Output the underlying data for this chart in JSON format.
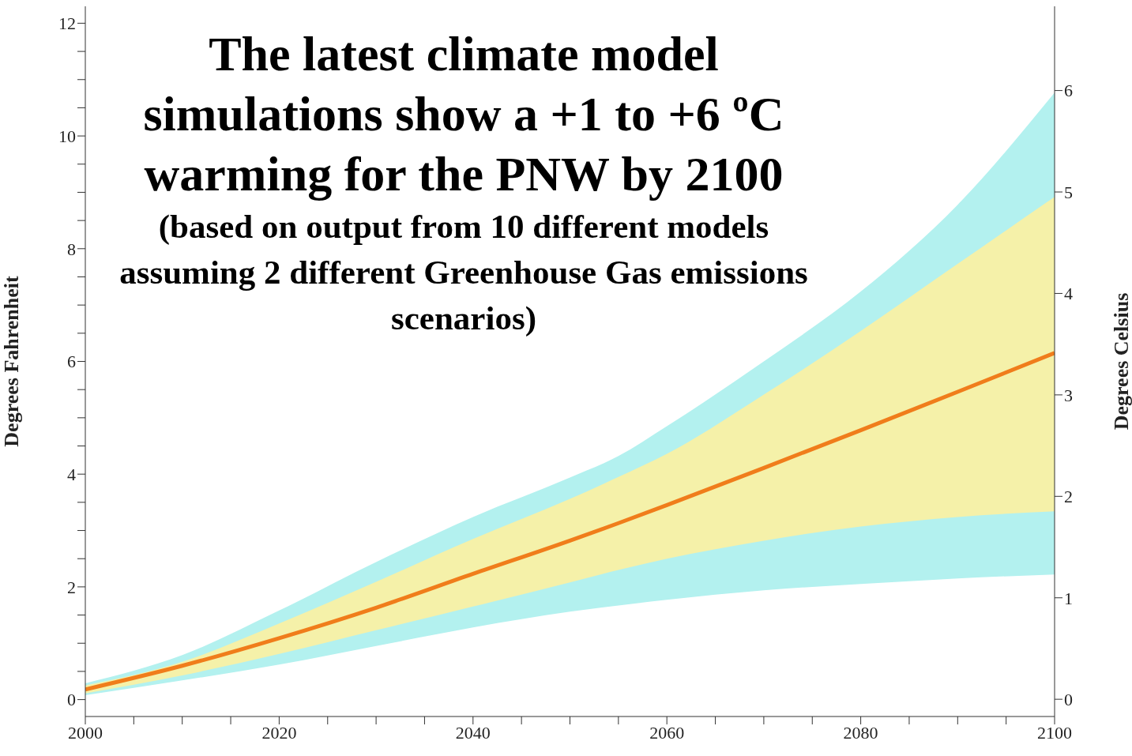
{
  "chart_data": {
    "type": "area",
    "title": "The latest climate model simulations show a +1 to +6 ºC warming for the PNW by 2100",
    "subtitle": "(based on output from 10 different models assuming 2 different Greenhouse Gas emissions scenarios)",
    "ylabel": "Degrees Fahrenheit",
    "y2label": "Degrees  Celsius",
    "x": [
      2000,
      2010,
      2020,
      2030,
      2040,
      2050,
      2055,
      2060,
      2070,
      2080,
      2090,
      2100
    ],
    "series": [
      {
        "color": "#b3f1ef",
        "values": [
          null,
          null,
          null,
          null,
          null,
          null,
          null,
          null,
          null,
          null,
          null,
          null
        ],
        "lower": [
          0.08,
          0.34,
          0.62,
          0.95,
          1.28,
          1.56,
          1.67,
          1.77,
          1.94,
          2.05,
          2.15,
          2.22
        ],
        "upper": [
          0.29,
          0.79,
          1.58,
          2.44,
          3.24,
          3.94,
          4.32,
          4.85,
          6.0,
          7.24,
          8.78,
          10.77
        ]
      },
      {
        "color": "#f5f1a9",
        "values": [
          null,
          null,
          null,
          null,
          null,
          null,
          null,
          null,
          null,
          null,
          null,
          null
        ],
        "lower": [
          0.11,
          0.43,
          0.81,
          1.23,
          1.65,
          2.08,
          2.3,
          2.5,
          2.82,
          3.07,
          3.24,
          3.34
        ],
        "upper": [
          0.25,
          0.67,
          1.35,
          2.09,
          2.85,
          3.56,
          3.95,
          4.36,
          5.41,
          6.54,
          7.73,
          8.92
        ]
      },
      {
        "type": "line",
        "color": "#f07d1b",
        "values": [
          0.18,
          0.6,
          1.09,
          1.63,
          2.23,
          2.82,
          3.13,
          3.45,
          4.11,
          4.78,
          5.46,
          6.15
        ]
      }
    ],
    "xlim": [
      2000,
      2100
    ],
    "xticks": [
      2000,
      {
        "value": 2005,
        "label": null
      },
      {
        "value": 2010,
        "label": null
      },
      {
        "value": 2015,
        "label": null
      },
      2020,
      {
        "value": 2025,
        "label": null
      },
      {
        "value": 2030,
        "label": null
      },
      {
        "value": 2035,
        "label": null
      },
      2040,
      {
        "value": 2045,
        "label": null
      },
      {
        "value": 2050,
        "label": null
      },
      {
        "value": 2055,
        "label": null
      },
      2060,
      {
        "value": 2065,
        "label": null
      },
      {
        "value": 2070,
        "label": null
      },
      {
        "value": 2075,
        "label": null
      },
      2080,
      {
        "value": 2085,
        "label": null
      },
      {
        "value": 2090,
        "label": null
      },
      {
        "value": 2095,
        "label": null
      },
      2100
    ],
    "ylim": [
      -0.3,
      12.3
    ],
    "yticks": [
      0,
      {
        "value": 0.5,
        "label": null
      },
      {
        "value": 1,
        "label": null
      },
      {
        "value": 1.5,
        "label": null
      },
      2,
      {
        "value": 2.5,
        "label": null
      },
      {
        "value": 3,
        "label": null
      },
      {
        "value": 3.5,
        "label": null
      },
      4,
      {
        "value": 4.5,
        "label": null
      },
      {
        "value": 5,
        "label": null
      },
      {
        "value": 5.5,
        "label": null
      },
      6,
      {
        "value": 6.5,
        "label": null
      },
      {
        "value": 7,
        "label": null
      },
      {
        "value": 7.5,
        "label": null
      },
      8,
      {
        "value": 8.5,
        "label": null
      },
      {
        "value": 9,
        "label": null
      },
      {
        "value": 9.5,
        "label": null
      },
      10,
      {
        "value": 10.5,
        "label": null
      },
      {
        "value": 11,
        "label": null
      },
      {
        "value": 11.5,
        "label": null
      },
      12
    ],
    "y2lim": [
      -0.17,
      6.83
    ],
    "y2ticks": [
      0,
      1,
      2,
      3,
      4,
      5,
      6
    ],
    "grid": false,
    "legend": false
  }
}
